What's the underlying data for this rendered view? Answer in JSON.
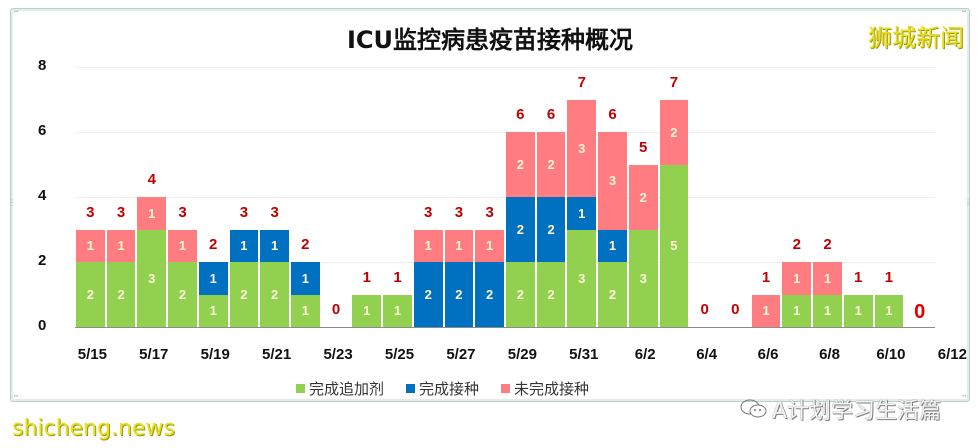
{
  "chart_data": {
    "type": "bar",
    "stacked": true,
    "title": "ICU监控病患疫苗接种概况",
    "xlabel": "",
    "ylabel": "",
    "ylim": [
      0,
      8
    ],
    "yticks": [
      "0",
      "2",
      "4",
      "6",
      "8"
    ],
    "grid": true,
    "legend_position": "bottom",
    "categories": [
      "5/15",
      "5/16",
      "5/17",
      "5/18",
      "5/19",
      "5/20",
      "5/21",
      "5/22",
      "5/23",
      "5/24",
      "5/25",
      "5/26",
      "5/27",
      "5/28",
      "5/29",
      "5/30",
      "5/31",
      "6/1",
      "6/2",
      "6/3",
      "6/4",
      "6/5",
      "6/6",
      "6/7",
      "6/8",
      "6/9",
      "6/10",
      "6/11"
    ],
    "xtick_labels": [
      "5/15",
      "5/17",
      "5/19",
      "5/21",
      "5/23",
      "5/25",
      "5/27",
      "5/29",
      "5/31",
      "6/2",
      "6/4",
      "6/6",
      "6/8",
      "6/10",
      "6/12"
    ],
    "series": [
      {
        "name": "完成追加剂",
        "color": "#92d050",
        "values": [
          2,
          2,
          3,
          2,
          1,
          2,
          2,
          1,
          0,
          1,
          1,
          0,
          0,
          0,
          2,
          2,
          3,
          2,
          3,
          5,
          0,
          0,
          0,
          1,
          1,
          1,
          1,
          0
        ]
      },
      {
        "name": "完成接种",
        "color": "#0070c0",
        "values": [
          0,
          0,
          0,
          0,
          1,
          1,
          1,
          1,
          0,
          0,
          0,
          2,
          2,
          2,
          2,
          2,
          1,
          1,
          0,
          0,
          0,
          0,
          0,
          0,
          0,
          0,
          0,
          0
        ]
      },
      {
        "name": "未完成接种",
        "color": "#ff7c80",
        "values": [
          1,
          1,
          1,
          1,
          0,
          0,
          0,
          0,
          0,
          0,
          0,
          1,
          1,
          1,
          2,
          2,
          3,
          3,
          2,
          2,
          0,
          0,
          1,
          1,
          1,
          0,
          0,
          0
        ]
      }
    ],
    "totals": [
      3,
      3,
      4,
      3,
      2,
      3,
      3,
      2,
      0,
      1,
      1,
      3,
      3,
      3,
      6,
      6,
      7,
      6,
      5,
      7,
      0,
      0,
      1,
      2,
      2,
      1,
      1,
      0
    ]
  },
  "watermarks": {
    "brand": "狮城新闻",
    "footer_left": "shicheng.news",
    "footer_right": "A计划学习生活篇"
  }
}
